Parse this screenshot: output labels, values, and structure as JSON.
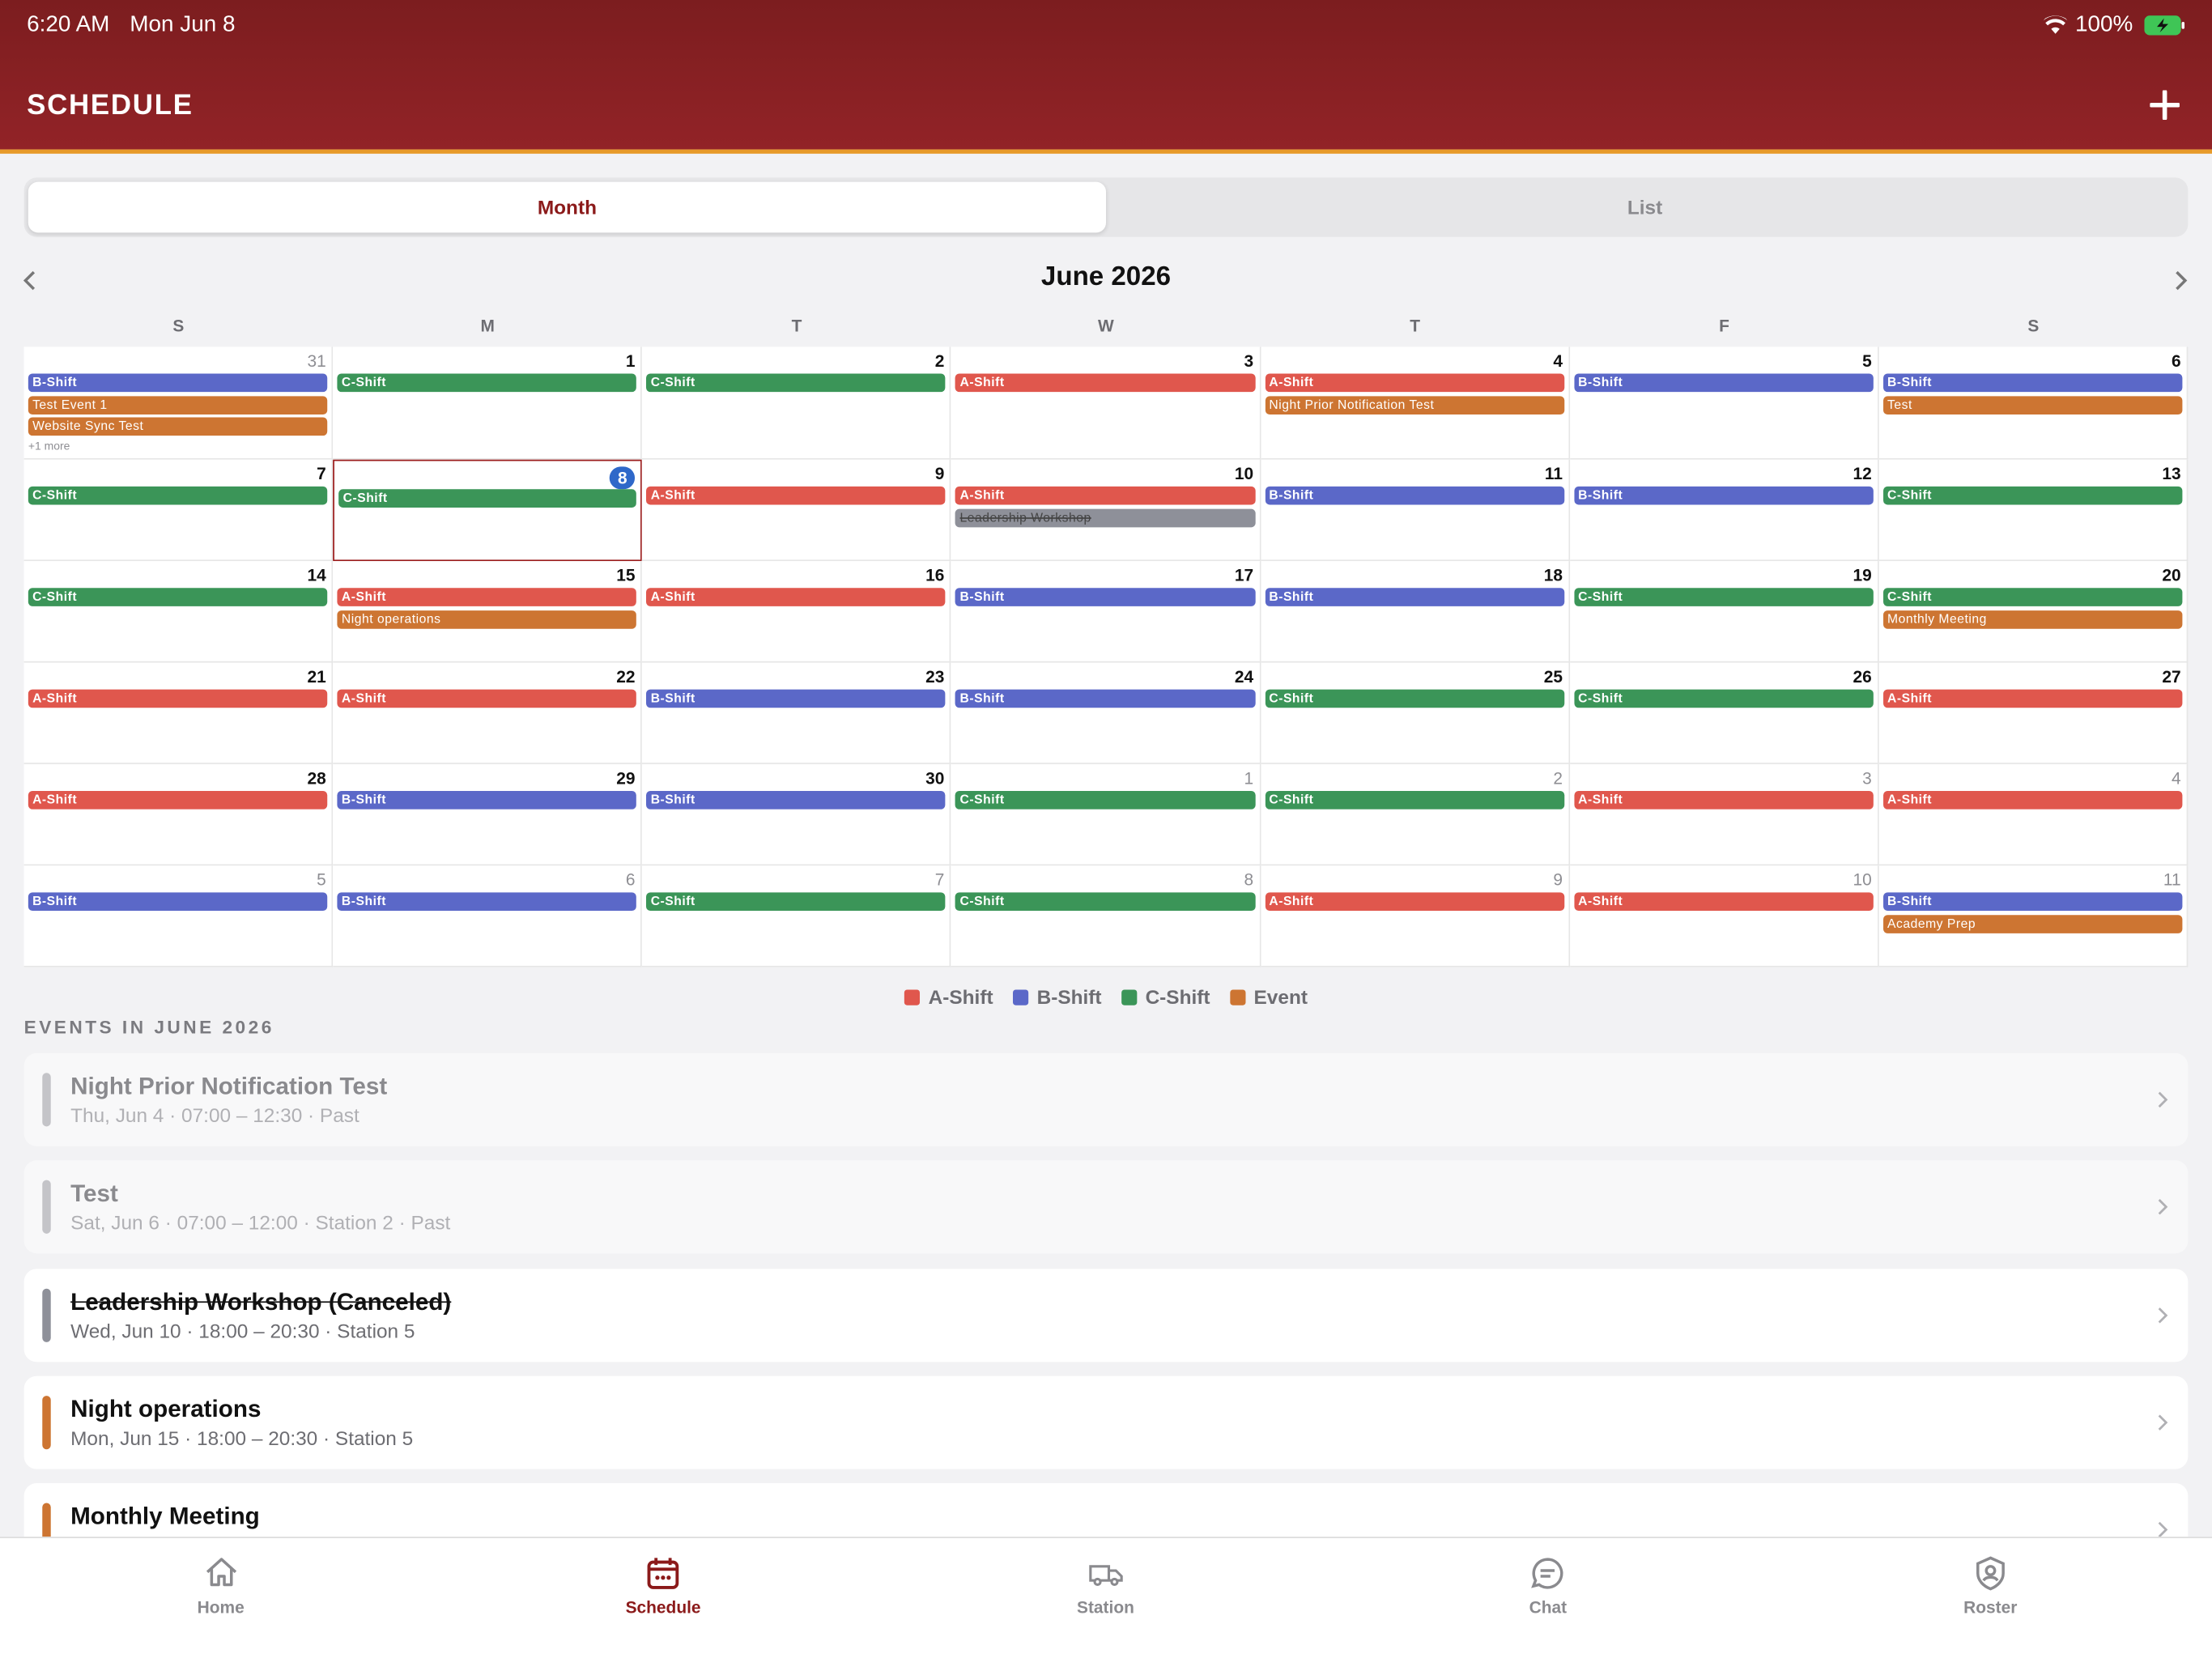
{
  "status_bar": {
    "time": "6:20 AM",
    "date": "Mon Jun 8",
    "battery": "100%"
  },
  "header": {
    "title": "SCHEDULE"
  },
  "tabs": {
    "items": [
      "Month",
      "List"
    ],
    "selected": 0
  },
  "calendar": {
    "title": "June 2026",
    "today": 8,
    "weekdays": [
      "S",
      "M",
      "T",
      "W",
      "T",
      "F",
      "S"
    ],
    "weeks": [
      [
        {
          "day": 31,
          "items": [
            {
              "label": "B-Shift",
              "color": "#5b68c8"
            },
            {
              "label": "Test Event 1",
              "color": "#cd7532"
            },
            {
              "label": "Website Sync Test",
              "color": "#cd7532"
            }
          ],
          "more": "+1 more"
        },
        {
          "day": 1,
          "items": [
            {
              "label": "C-Shift",
              "color": "#3b9558"
            }
          ]
        },
        {
          "day": 2,
          "items": [
            {
              "label": "C-Shift",
              "color": "#3b9558"
            }
          ]
        },
        {
          "day": 3,
          "items": [
            {
              "label": "A-Shift",
              "color": "#e0574d"
            }
          ]
        },
        {
          "day": 4,
          "items": [
            {
              "label": "A-Shift",
              "color": "#e0574d"
            },
            {
              "label": "Night Prior Notification Test",
              "color": "#cd7532"
            }
          ]
        },
        {
          "day": 5,
          "items": [
            {
              "label": "B-Shift",
              "color": "#5b68c8"
            }
          ]
        },
        {
          "day": 6,
          "items": [
            {
              "label": "B-Shift",
              "color": "#5b68c8"
            },
            {
              "label": "Test",
              "color": "#cd7532"
            }
          ]
        }
      ],
      [
        {
          "day": 7,
          "items": [
            {
              "label": "C-Shift",
              "color": "#3b9558"
            }
          ]
        },
        {
          "day": 8,
          "items": [
            {
              "label": "C-Shift",
              "color": "#3b9558"
            }
          ]
        },
        {
          "day": 9,
          "items": [
            {
              "label": "A-Shift",
              "color": "#e0574d"
            }
          ]
        },
        {
          "day": 10,
          "items": [
            {
              "label": "A-Shift",
              "color": "#e0574d"
            },
            {
              "label": "Leadership Workshop",
              "color": "#8e9099",
              "strike": true
            }
          ]
        },
        {
          "day": 11,
          "items": [
            {
              "label": "B-Shift",
              "color": "#5b68c8"
            }
          ]
        },
        {
          "day": 12,
          "items": [
            {
              "label": "B-Shift",
              "color": "#5b68c8"
            }
          ]
        },
        {
          "day": 13,
          "items": [
            {
              "label": "C-Shift",
              "color": "#3b9558"
            }
          ]
        }
      ],
      [
        {
          "day": 14,
          "items": [
            {
              "label": "C-Shift",
              "color": "#3b9558"
            }
          ]
        },
        {
          "day": 15,
          "items": [
            {
              "label": "A-Shift",
              "color": "#e0574d"
            },
            {
              "label": "Night operations",
              "color": "#cd7532"
            }
          ]
        },
        {
          "day": 16,
          "items": [
            {
              "label": "A-Shift",
              "color": "#e0574d"
            }
          ]
        },
        {
          "day": 17,
          "items": [
            {
              "label": "B-Shift",
              "color": "#5b68c8"
            }
          ]
        },
        {
          "day": 18,
          "items": [
            {
              "label": "B-Shift",
              "color": "#5b68c8"
            }
          ]
        },
        {
          "day": 19,
          "items": [
            {
              "label": "C-Shift",
              "color": "#3b9558"
            }
          ]
        },
        {
          "day": 20,
          "items": [
            {
              "label": "C-Shift",
              "color": "#3b9558"
            },
            {
              "label": "Monthly Meeting",
              "color": "#cd7532"
            }
          ]
        }
      ],
      [
        {
          "day": 21,
          "items": [
            {
              "label": "A-Shift",
              "color": "#e0574d"
            }
          ]
        },
        {
          "day": 22,
          "items": [
            {
              "label": "A-Shift",
              "color": "#e0574d"
            }
          ]
        },
        {
          "day": 23,
          "items": [
            {
              "label": "B-Shift",
              "color": "#5b68c8"
            }
          ]
        },
        {
          "day": 24,
          "items": [
            {
              "label": "B-Shift",
              "color": "#5b68c8"
            }
          ]
        },
        {
          "day": 25,
          "items": [
            {
              "label": "C-Shift",
              "color": "#3b9558"
            }
          ]
        },
        {
          "day": 26,
          "items": [
            {
              "label": "C-Shift",
              "color": "#3b9558"
            }
          ]
        },
        {
          "day": 27,
          "items": [
            {
              "label": "A-Shift",
              "color": "#e0574d"
            }
          ]
        }
      ],
      [
        {
          "day": 28,
          "items": [
            {
              "label": "A-Shift",
              "color": "#e0574d"
            }
          ]
        },
        {
          "day": 29,
          "items": [
            {
              "label": "B-Shift",
              "color": "#5b68c8"
            }
          ]
        },
        {
          "day": 30,
          "items": [
            {
              "label": "B-Shift",
              "color": "#5b68c8"
            }
          ]
        },
        {
          "day": 1,
          "items": [
            {
              "label": "C-Shift",
              "color": "#3b9558"
            }
          ]
        },
        {
          "day": 2,
          "items": [
            {
              "label": "C-Shift",
              "color": "#3b9558"
            }
          ]
        },
        {
          "day": 3,
          "items": [
            {
              "label": "A-Shift",
              "color": "#e0574d"
            }
          ]
        },
        {
          "day": 4,
          "items": [
            {
              "label": "A-Shift",
              "color": "#e0574d"
            }
          ]
        }
      ],
      [
        {
          "day": 5,
          "items": [
            {
              "label": "B-Shift",
              "color": "#5b68c8"
            }
          ]
        },
        {
          "day": 6,
          "items": [
            {
              "label": "B-Shift",
              "color": "#5b68c8"
            }
          ]
        },
        {
          "day": 7,
          "items": [
            {
              "label": "C-Shift",
              "color": "#3b9558"
            }
          ]
        },
        {
          "day": 8,
          "items": [
            {
              "label": "C-Shift",
              "color": "#3b9558"
            }
          ]
        },
        {
          "day": 9,
          "items": [
            {
              "label": "A-Shift",
              "color": "#e0574d"
            }
          ]
        },
        {
          "day": 10,
          "items": [
            {
              "label": "A-Shift",
              "color": "#e0574d"
            }
          ]
        },
        {
          "day": 11,
          "items": [
            {
              "label": "B-Shift",
              "color": "#5b68c8"
            },
            {
              "label": "Academy Prep",
              "color": "#cd7532"
            }
          ]
        }
      ]
    ]
  },
  "legend": [
    {
      "label": "A-Shift",
      "color": "#e0574d"
    },
    {
      "label": "B-Shift",
      "color": "#5b68c8"
    },
    {
      "label": "C-Shift",
      "color": "#3b9558"
    },
    {
      "label": "Event",
      "color": "#cd7532"
    }
  ],
  "events": {
    "heading": "EVENTS IN JUNE 2026",
    "items": [
      {
        "title": "Night Prior Notification Test",
        "subtitle": "Thu, Jun 4 · 07:00 – 12:30 · Past",
        "color": "#c4c4c8",
        "past": true
      },
      {
        "title": "Test",
        "subtitle": "Sat, Jun 6 · 07:00 – 12:00 · Station 2 · Past",
        "color": "#c4c4c8",
        "past": true
      },
      {
        "title": "Leadership Workshop  (Canceled)",
        "subtitle": "Wed, Jun 10 · 18:00 – 20:30 · Station 5",
        "color": "#8e9099",
        "strike": true
      },
      {
        "title": "Night operations",
        "subtitle": "Mon, Jun 15 · 18:00 – 20:30 · Station 5",
        "color": "#cd7532"
      },
      {
        "title": "Monthly Meeting",
        "color": "#cd7532"
      }
    ]
  },
  "tab_bar": {
    "items": [
      "Home",
      "Schedule",
      "Station",
      "Chat",
      "Roster"
    ],
    "selected": 1
  }
}
